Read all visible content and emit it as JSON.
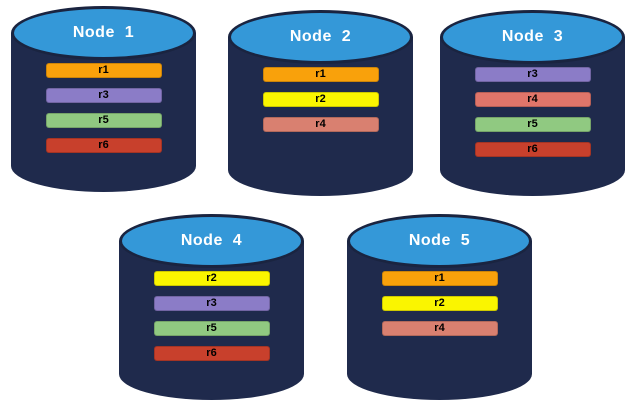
{
  "palette": {
    "background": "#FFFFFF",
    "cylinder_body": "#1F2A4C",
    "cylinder_top": "#3498D8",
    "cylinder_outline": "#1A2440",
    "title_text": "#FFFFFF",
    "bar_text": "#000000"
  },
  "replica_colors": {
    "r1": "#F9A10B",
    "r2": "#FAF500",
    "r3": "#8B7CC7",
    "r4": "#D98070",
    "r5": "#90C981",
    "r6": "#C8402C"
  },
  "nodes": [
    {
      "title": "Node  1",
      "bars": [
        {
          "label": "r1",
          "color": "#F9A10B"
        },
        {
          "label": "r3",
          "color": "#8B7CC7"
        },
        {
          "label": "r5",
          "color": "#90C981"
        },
        {
          "label": "r6",
          "color": "#C8402C"
        }
      ]
    },
    {
      "title": "Node  2",
      "bars": [
        {
          "label": "r1",
          "color": "#F9A10B"
        },
        {
          "label": "r2",
          "color": "#FAF500"
        },
        {
          "label": "r4",
          "color": "#D98070"
        }
      ]
    },
    {
      "title": "Node  3",
      "bars": [
        {
          "label": "r3",
          "color": "#8B7CC7"
        },
        {
          "label": "r4",
          "color": "#E0756A"
        },
        {
          "label": "r5",
          "color": "#90C981"
        },
        {
          "label": "r6",
          "color": "#C8402C"
        }
      ]
    },
    {
      "title": "Node  4",
      "bars": [
        {
          "label": "r2",
          "color": "#FAF500"
        },
        {
          "label": "r3",
          "color": "#8B7CC7"
        },
        {
          "label": "r5",
          "color": "#90C981"
        },
        {
          "label": "r6",
          "color": "#C8402C"
        }
      ]
    },
    {
      "title": "Node  5",
      "bars": [
        {
          "label": "r1",
          "color": "#F9A10B"
        },
        {
          "label": "r2",
          "color": "#FAF500"
        },
        {
          "label": "r4",
          "color": "#D98070"
        }
      ]
    }
  ]
}
